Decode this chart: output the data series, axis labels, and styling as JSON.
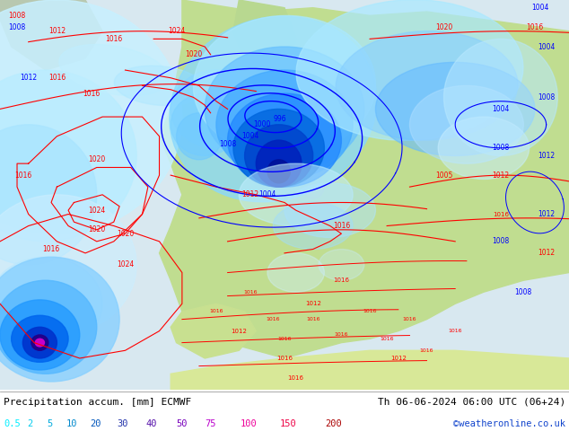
{
  "title_left": "Precipitation accum. [mm] ECMWF",
  "title_right": "Th 06-06-2024 06:00 UTC (06+24)",
  "credit": "©weatheronline.co.uk",
  "legend_values": [
    "0.5",
    "2",
    "5",
    "10",
    "20",
    "30",
    "40",
    "50",
    "75",
    "100",
    "150",
    "200"
  ],
  "legend_colors": [
    "#00eeff",
    "#00ccee",
    "#00aadd",
    "#0088cc",
    "#0055bb",
    "#2233aa",
    "#5511aa",
    "#7700bb",
    "#bb00cc",
    "#ee0099",
    "#ee0044",
    "#aa0000"
  ],
  "ocean_color": "#d8eaf8",
  "land_color": "#c8e8a0",
  "map_bg": "#e8f0e8",
  "fig_bg": "#ffffff",
  "fig_width": 6.34,
  "fig_height": 4.9,
  "dpi": 100,
  "precip_colors": {
    "lightest": "#ccf5ff",
    "light": "#aae8ff",
    "medium_light": "#88d8ff",
    "medium": "#55bbff",
    "medium_dark": "#2299ff",
    "dark": "#0066ee",
    "darker": "#0033cc",
    "darkest": "#0011aa",
    "deep": "#220088",
    "magenta": "#cc00cc"
  }
}
